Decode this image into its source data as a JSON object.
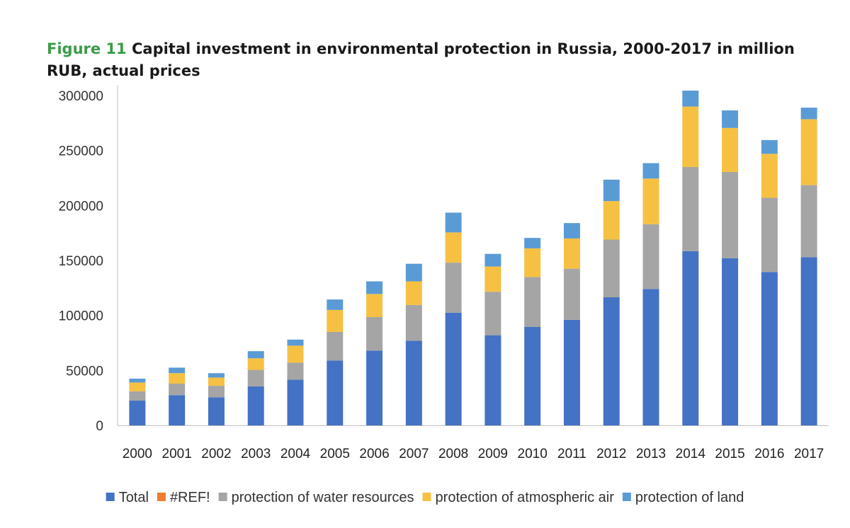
{
  "figure": {
    "label": "Figure 11",
    "title": "Capital investment in environmental protection in Russia, 2000-2017 in million RUB, actual prices",
    "label_color": "#3a9b4a"
  },
  "chart_data": {
    "type": "bar",
    "stacked": true,
    "categories": [
      "2000",
      "2001",
      "2002",
      "2003",
      "2004",
      "2005",
      "2006",
      "2007",
      "2008",
      "2009",
      "2010",
      "2011",
      "2012",
      "2013",
      "2014",
      "2015",
      "2016",
      "2017"
    ],
    "series": [
      {
        "name": "Total",
        "color": "#4472c4",
        "values": [
          22500,
          27500,
          25500,
          35500,
          41500,
          59000,
          68000,
          77000,
          102500,
          82000,
          89500,
          96000,
          116500,
          124000,
          158500,
          152000,
          139500,
          153000
        ]
      },
      {
        "name": "#REF!",
        "color": "#ed7d31",
        "values": [
          0,
          0,
          0,
          0,
          0,
          0,
          0,
          0,
          0,
          0,
          0,
          0,
          0,
          0,
          0,
          0,
          0,
          0
        ]
      },
      {
        "name": "protection of water resources",
        "color": "#a5a5a5",
        "values": [
          8500,
          10500,
          10500,
          15000,
          15500,
          26000,
          30500,
          32500,
          45500,
          39500,
          45500,
          46500,
          52500,
          59000,
          76500,
          78500,
          67500,
          65500
        ]
      },
      {
        "name": "protection of atmospheric air",
        "color": "#f6c142",
        "values": [
          8000,
          9500,
          7500,
          10500,
          15500,
          20000,
          21000,
          21500,
          27500,
          23000,
          26000,
          27500,
          35000,
          41500,
          55000,
          40000,
          40000,
          60000
        ]
      },
      {
        "name": "protection of land",
        "color": "#5b9bd5",
        "values": [
          3500,
          5000,
          4000,
          6500,
          5500,
          9500,
          11500,
          16000,
          18000,
          11500,
          9500,
          14000,
          19500,
          14000,
          14500,
          16000,
          12500,
          10500
        ]
      }
    ],
    "yticks": [
      0,
      50000,
      100000,
      150000,
      200000,
      250000,
      300000
    ],
    "ylim": [
      0,
      310000
    ],
    "legend_position": "bottom",
    "grid": false
  }
}
